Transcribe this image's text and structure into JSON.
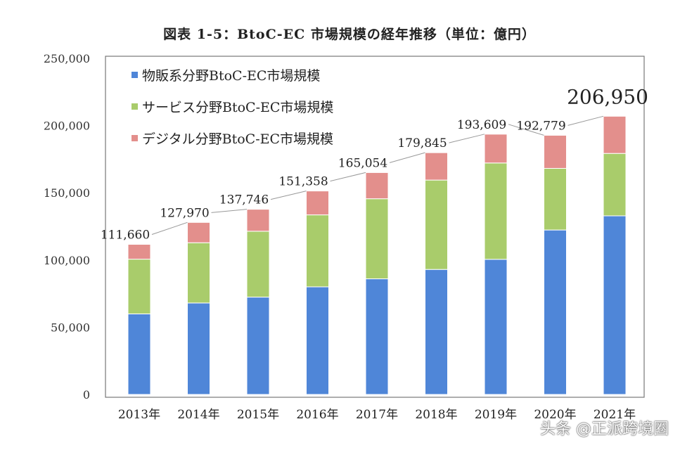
{
  "chart_data": {
    "type": "bar",
    "stacked": true,
    "title": "図表 1-5：BtoC-EC 市場規模の経年推移（単位：億円）",
    "xlabel": "",
    "ylabel": "",
    "ylim": [
      0,
      250000
    ],
    "yticks": [
      "0",
      "50,000",
      "100,000",
      "150,000",
      "200,000",
      "250,000"
    ],
    "grid": false,
    "legend_position": "top-left",
    "categories": [
      "2013年",
      "2014年",
      "2015年",
      "2016年",
      "2017年",
      "2018年",
      "2019年",
      "2020年",
      "2021年"
    ],
    "series": [
      {
        "name": "物販系分野BtoC-EC市場規模",
        "color": "#4f86d8",
        "values": [
          59931,
          68042,
          72398,
          80043,
          86008,
          92992,
          100515,
          122333,
          132865
        ]
      },
      {
        "name": "サービス分野BtoC-EC市場規模",
        "color": "#a9cc6b",
        "values": [
          40700,
          44816,
          49014,
          53532,
          59568,
          66471,
          71672,
          45832,
          46424
        ]
      },
      {
        "name": "デジタル分野BtoC-EC市場規模",
        "color": "#e38f8c",
        "values": [
          11029,
          15112,
          16334,
          17782,
          19478,
          20382,
          21422,
          24614,
          27661
        ]
      }
    ],
    "totals": [
      "111,660",
      "127,970",
      "137,746",
      "151,358",
      "165,054",
      "179,845",
      "193,609",
      "192,779",
      "206,950"
    ]
  },
  "watermark": "头条 @正派跨境圈"
}
